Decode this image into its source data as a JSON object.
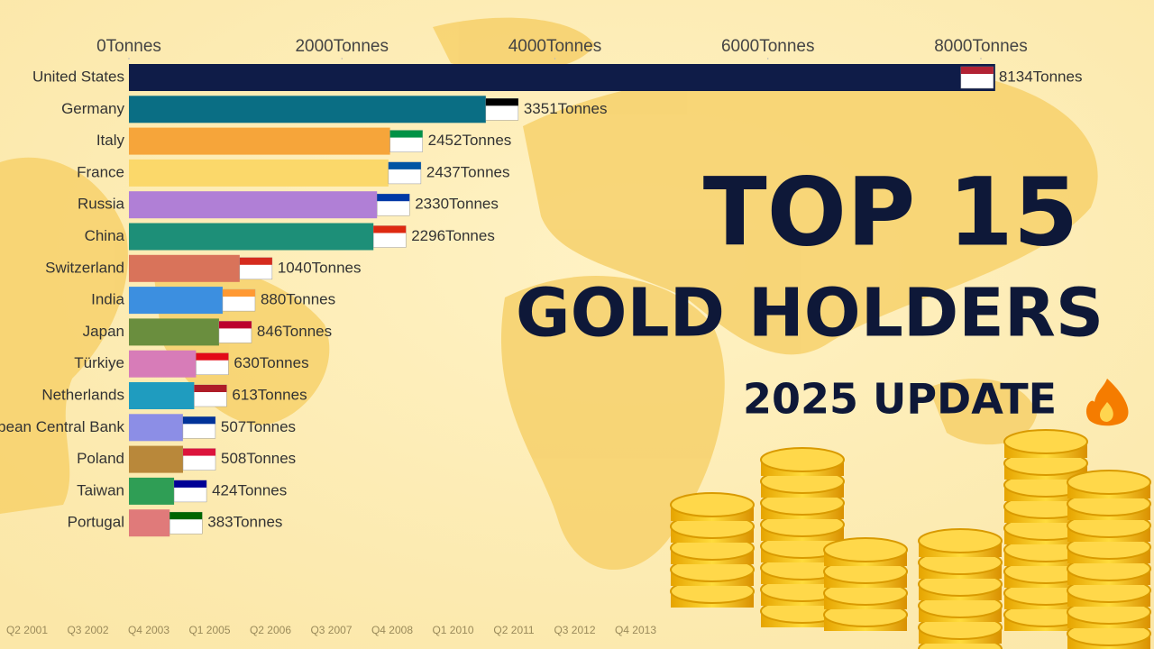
{
  "chart_data": {
    "type": "bar",
    "orientation": "horizontal",
    "title": "TOP 15",
    "subtitle": "GOLD HOLDERS",
    "badge": "2025 UPDATE",
    "categories": [
      "United States",
      "Germany",
      "Italy",
      "France",
      "Russia",
      "China",
      "Switzerland",
      "India",
      "Japan",
      "Türkiye",
      "Netherlands",
      "European Central Bank",
      "Poland",
      "Taiwan",
      "Portugal"
    ],
    "values": [
      8134,
      3351,
      2452,
      2437,
      2330,
      2296,
      1040,
      880,
      846,
      630,
      613,
      507,
      508,
      424,
      383
    ],
    "value_labels": [
      "8134Tonnes",
      "3351Tonnes",
      "2452Tonnes",
      "2437Tonnes",
      "2330Tonnes",
      "2296Tonnes",
      "1040Tonnes",
      "880Tonnes",
      "846Tonnes",
      "630Tonnes",
      "613Tonnes",
      "507Tonnes",
      "508Tonnes",
      "424Tonnes",
      "383Tonnes"
    ],
    "colors": [
      "#0f1c48",
      "#0a6e84",
      "#f6a53a",
      "#fbd86a",
      "#b07fd6",
      "#1d8f78",
      "#d9735a",
      "#3c8fe0",
      "#6a8e3e",
      "#d77cb8",
      "#1f9cbf",
      "#8c8ee6",
      "#b9883a",
      "#2f9e55",
      "#e07a7a"
    ],
    "xlim": [
      0,
      8000
    ],
    "xticks": [
      {
        "value": 0,
        "label": "0Tonnes"
      },
      {
        "value": 2000,
        "label": "2000Tonnes"
      },
      {
        "value": 4000,
        "label": "4000Tonnes"
      },
      {
        "value": 6000,
        "label": "6000Tonnes"
      },
      {
        "value": 8000,
        "label": "8000Tonnes"
      }
    ],
    "timeline": [
      "Q2 2001",
      "Q3 2002",
      "Q4 2003",
      "Q1 2005",
      "Q2 2006",
      "Q3 2007",
      "Q4 2008",
      "Q1 2010",
      "Q2 2011",
      "Q3 2012",
      "Q4 2013"
    ]
  }
}
